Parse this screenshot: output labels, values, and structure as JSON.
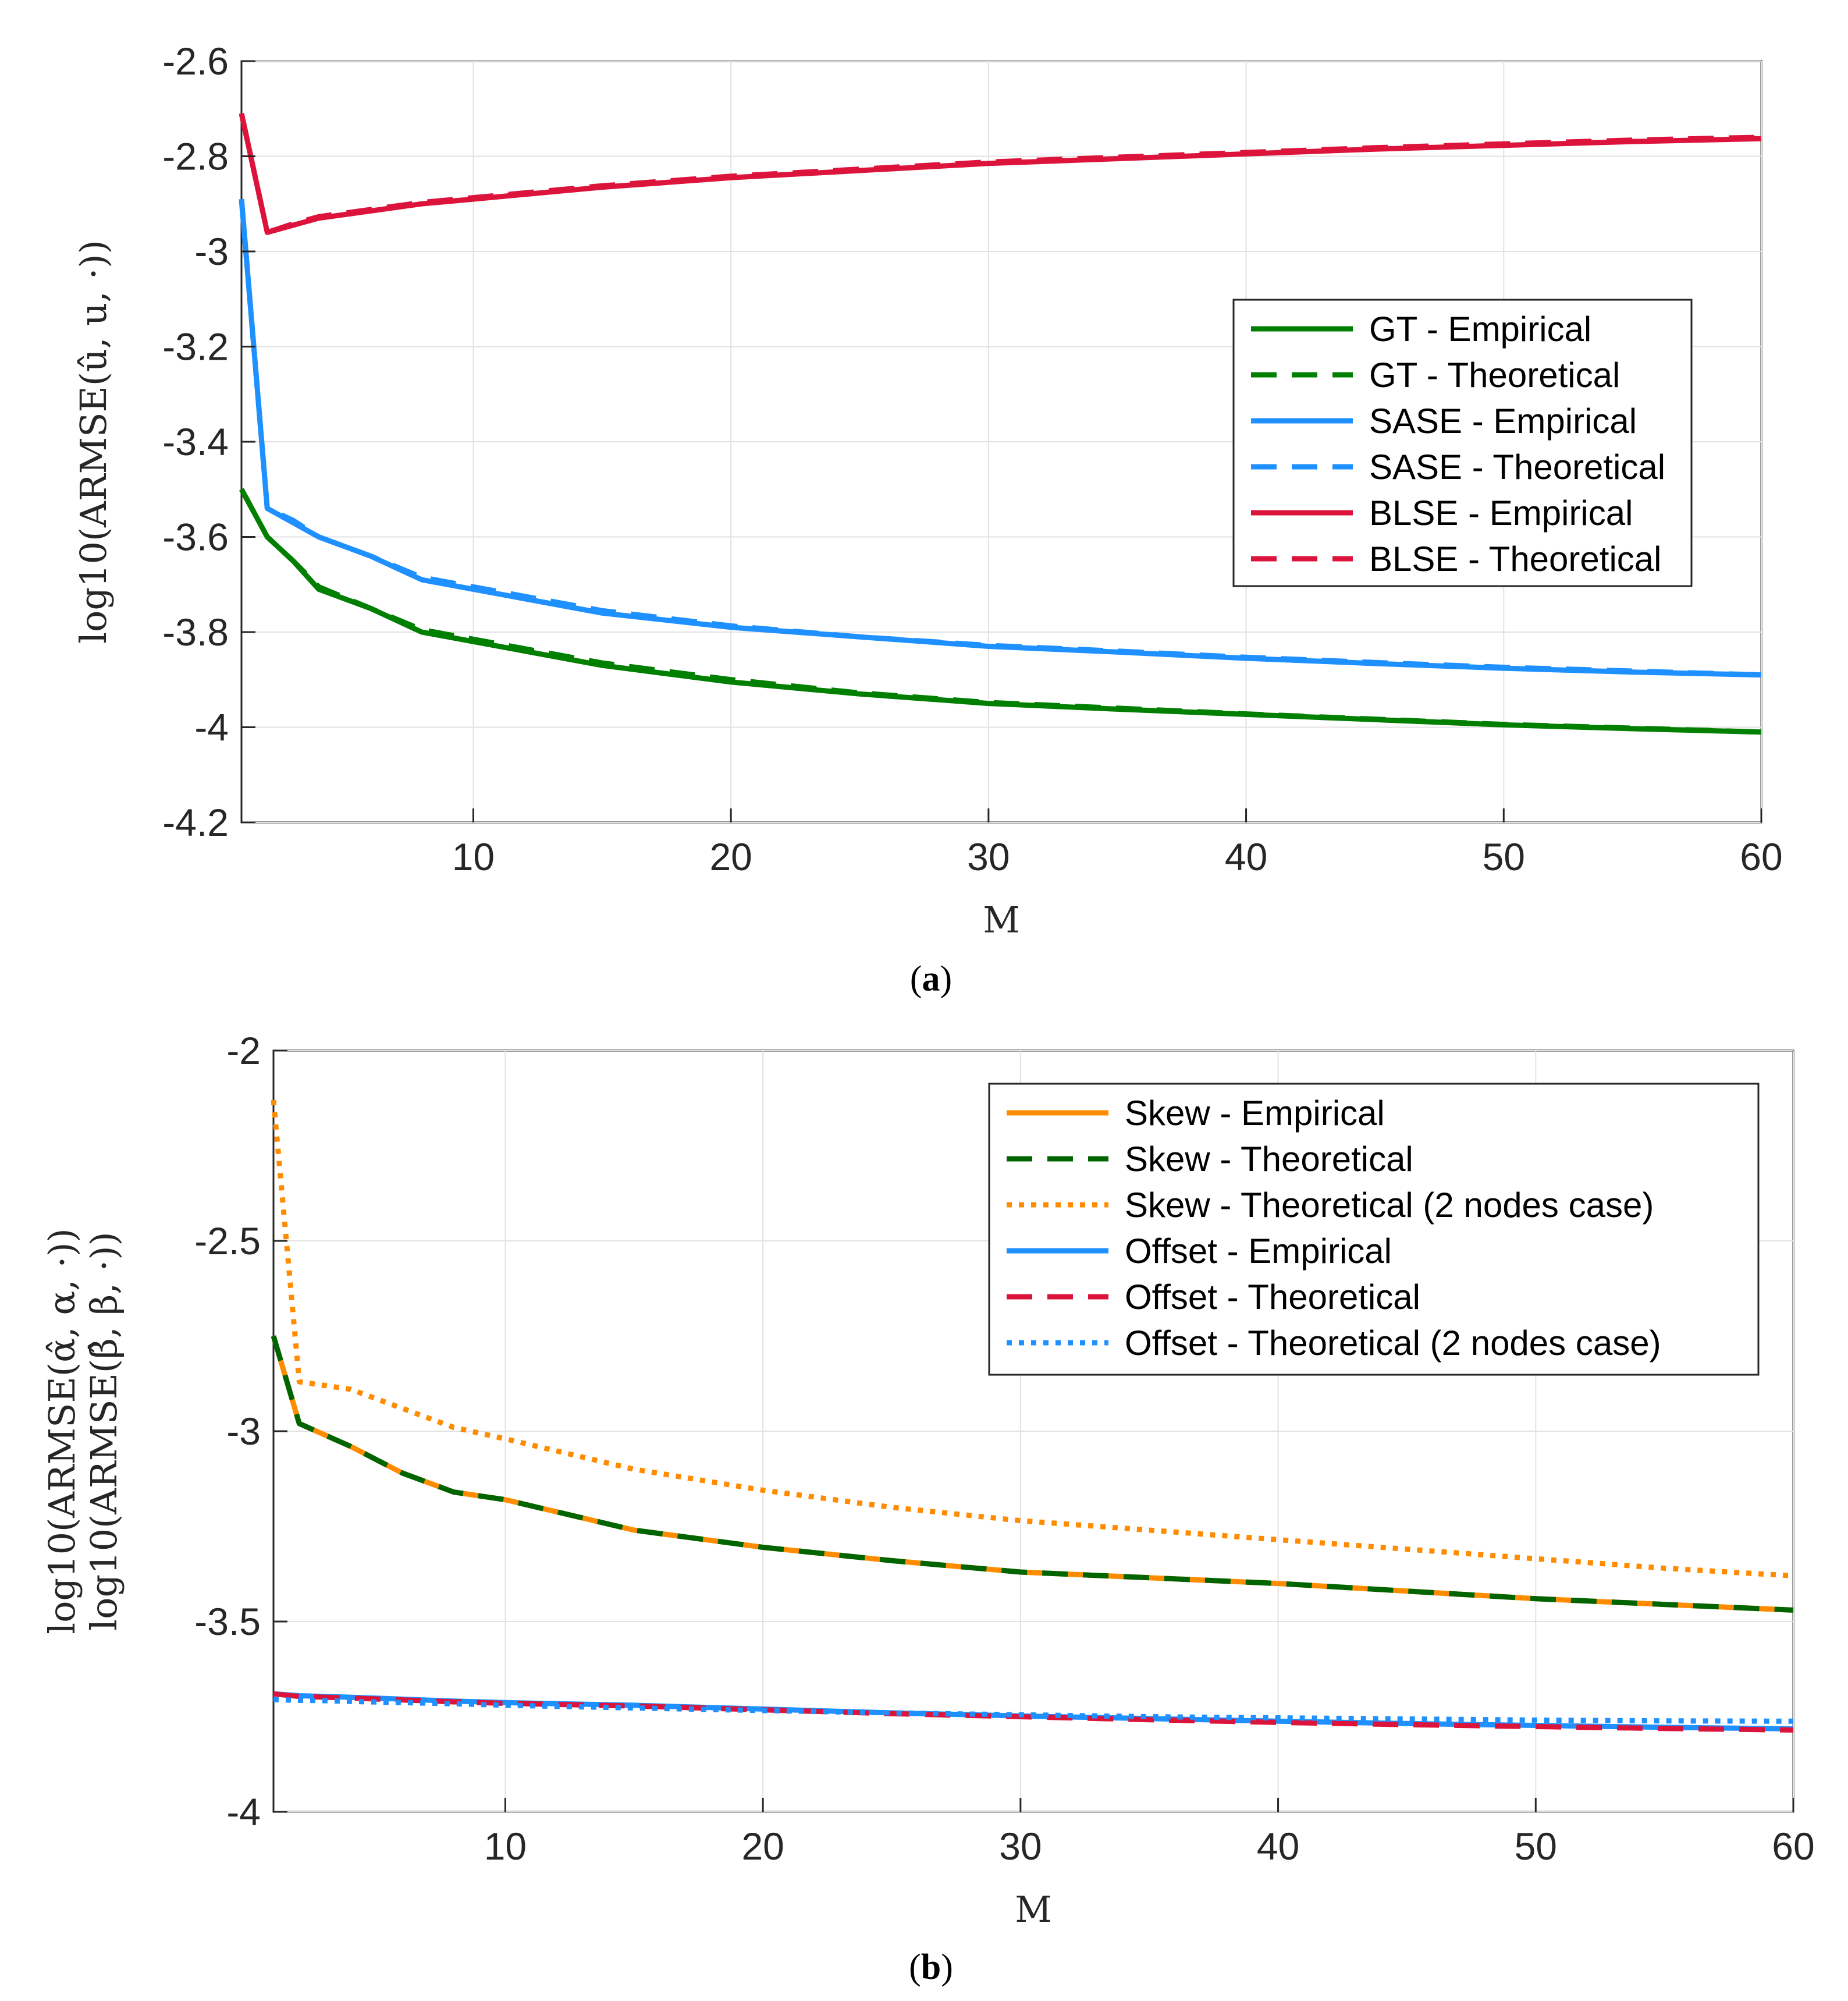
{
  "chart_data": [
    {
      "id": "a",
      "type": "line",
      "panel_label": "a",
      "xlabel": "M",
      "ylabel": "log10(ARMSE(û, u, ·))",
      "xlim": [
        1,
        60
      ],
      "ylim": [
        -4.2,
        -2.6
      ],
      "xticks": [
        10,
        20,
        30,
        40,
        50,
        60
      ],
      "yticks": [
        -4.2,
        -4,
        -3.8,
        -3.6,
        -3.4,
        -3.2,
        -3,
        -2.8,
        -2.6
      ],
      "ytick_labels": [
        "-4.2",
        "-4",
        "-3.8",
        "-3.6",
        "-3.4",
        "-3.2",
        "-3",
        "-2.8",
        "-2.6"
      ],
      "xtick_labels": [
        "10",
        "20",
        "30",
        "40",
        "50",
        "60"
      ],
      "grid": true,
      "legend_position": "right",
      "x": [
        1,
        2,
        3,
        4,
        6,
        8,
        10,
        15,
        20,
        25,
        30,
        35,
        40,
        45,
        50,
        55,
        60
      ],
      "series": [
        {
          "name": "GT - Empirical",
          "color": "#007F00",
          "style": "solid",
          "values": [
            -3.5,
            -3.6,
            -3.65,
            -3.71,
            -3.75,
            -3.8,
            -3.82,
            -3.87,
            -3.905,
            -3.93,
            -3.95,
            -3.962,
            -3.973,
            -3.984,
            -3.995,
            -4.003,
            -4.01
          ]
        },
        {
          "name": "GT - Theoretical",
          "color": "#007F00",
          "style": "dashed",
          "values": [
            -3.5,
            -3.6,
            -3.65,
            -3.705,
            -3.75,
            -3.795,
            -3.815,
            -3.865,
            -3.9,
            -3.928,
            -3.948,
            -3.96,
            -3.972,
            -3.983,
            -3.994,
            -4.002,
            -4.01
          ]
        },
        {
          "name": "SASE - Empirical",
          "color": "#1E90FF",
          "style": "solid",
          "values": [
            -2.89,
            -3.54,
            -3.57,
            -3.6,
            -3.64,
            -3.69,
            -3.71,
            -3.76,
            -3.79,
            -3.81,
            -3.83,
            -3.842,
            -3.855,
            -3.866,
            -3.876,
            -3.884,
            -3.89
          ]
        },
        {
          "name": "SASE - Theoretical",
          "color": "#1E90FF",
          "style": "dashed",
          "values": [
            -2.89,
            -3.54,
            -3.565,
            -3.6,
            -3.64,
            -3.685,
            -3.705,
            -3.755,
            -3.787,
            -3.81,
            -3.828,
            -3.84,
            -3.853,
            -3.864,
            -3.874,
            -3.882,
            -3.89
          ]
        },
        {
          "name": "BLSE - Empirical",
          "color": "#DC143C",
          "style": "solid",
          "values": [
            -2.71,
            -2.96,
            -2.945,
            -2.93,
            -2.915,
            -2.9,
            -2.89,
            -2.865,
            -2.845,
            -2.83,
            -2.815,
            -2.805,
            -2.795,
            -2.785,
            -2.777,
            -2.769,
            -2.763
          ]
        },
        {
          "name": "BLSE - Theoretical",
          "color": "#DC143C",
          "style": "dashed",
          "values": [
            -2.71,
            -2.96,
            -2.942,
            -2.927,
            -2.912,
            -2.897,
            -2.887,
            -2.862,
            -2.842,
            -2.827,
            -2.812,
            -2.802,
            -2.792,
            -2.782,
            -2.774,
            -2.766,
            -2.76
          ]
        }
      ]
    },
    {
      "id": "b",
      "type": "line",
      "panel_label": "b",
      "xlabel": "M",
      "ylabel": "log10(ARMSE(α̂, α, ·))",
      "ylabel2": "log10(ARMSE(β̂, β, ·))",
      "xlim": [
        1,
        60
      ],
      "ylim": [
        -4,
        -2
      ],
      "xticks": [
        10,
        20,
        30,
        40,
        50,
        60
      ],
      "yticks": [
        -4,
        -3.5,
        -3,
        -2.5,
        -2
      ],
      "ytick_labels": [
        "-4",
        "-3.5",
        "-3",
        "-2.5",
        "-2"
      ],
      "xtick_labels": [
        "10",
        "20",
        "30",
        "40",
        "50",
        "60"
      ],
      "grid": true,
      "legend_position": "top-right",
      "x": [
        1,
        2,
        3,
        4,
        6,
        8,
        10,
        15,
        20,
        25,
        30,
        35,
        40,
        45,
        50,
        55,
        60
      ],
      "series": [
        {
          "name": "Skew - Empirical",
          "color": "#FF8C00",
          "style": "solid",
          "values": [
            -2.75,
            -2.98,
            -3.01,
            -3.04,
            -3.11,
            -3.16,
            -3.18,
            -3.26,
            -3.305,
            -3.34,
            -3.37,
            -3.385,
            -3.4,
            -3.42,
            -3.44,
            -3.455,
            -3.47
          ]
        },
        {
          "name": "Skew - Theoretical",
          "color": "#006400",
          "style": "dashed",
          "values": [
            -2.75,
            -2.98,
            -3.01,
            -3.04,
            -3.11,
            -3.16,
            -3.18,
            -3.26,
            -3.305,
            -3.34,
            -3.37,
            -3.385,
            -3.4,
            -3.42,
            -3.44,
            -3.455,
            -3.47
          ]
        },
        {
          "name": "Skew - Theoretical (2 nodes case)",
          "color": "#FF8C00",
          "style": "dotted",
          "values": [
            -2.13,
            -2.87,
            -2.88,
            -2.89,
            -2.94,
            -2.99,
            -3.02,
            -3.1,
            -3.155,
            -3.2,
            -3.235,
            -3.26,
            -3.285,
            -3.31,
            -3.335,
            -3.36,
            -3.38
          ]
        },
        {
          "name": "Offset - Empirical",
          "color": "#1E90FF",
          "style": "solid",
          "values": [
            -3.69,
            -3.695,
            -3.697,
            -3.699,
            -3.704,
            -3.709,
            -3.713,
            -3.72,
            -3.73,
            -3.74,
            -3.748,
            -3.755,
            -3.762,
            -3.768,
            -3.773,
            -3.778,
            -3.782
          ]
        },
        {
          "name": "Offset - Theoretical",
          "color": "#DC143C",
          "style": "dashed",
          "values": [
            -3.69,
            -3.697,
            -3.699,
            -3.701,
            -3.706,
            -3.711,
            -3.715,
            -3.722,
            -3.732,
            -3.742,
            -3.75,
            -3.758,
            -3.765,
            -3.771,
            -3.776,
            -3.781,
            -3.785
          ]
        },
        {
          "name": "Offset - Theoretical (2 nodes case)",
          "color": "#1E90FF",
          "style": "dotted",
          "values": [
            -3.705,
            -3.707,
            -3.708,
            -3.71,
            -3.713,
            -3.716,
            -3.72,
            -3.727,
            -3.734,
            -3.74,
            -3.745,
            -3.75,
            -3.753,
            -3.756,
            -3.759,
            -3.761,
            -3.762
          ]
        }
      ]
    }
  ]
}
